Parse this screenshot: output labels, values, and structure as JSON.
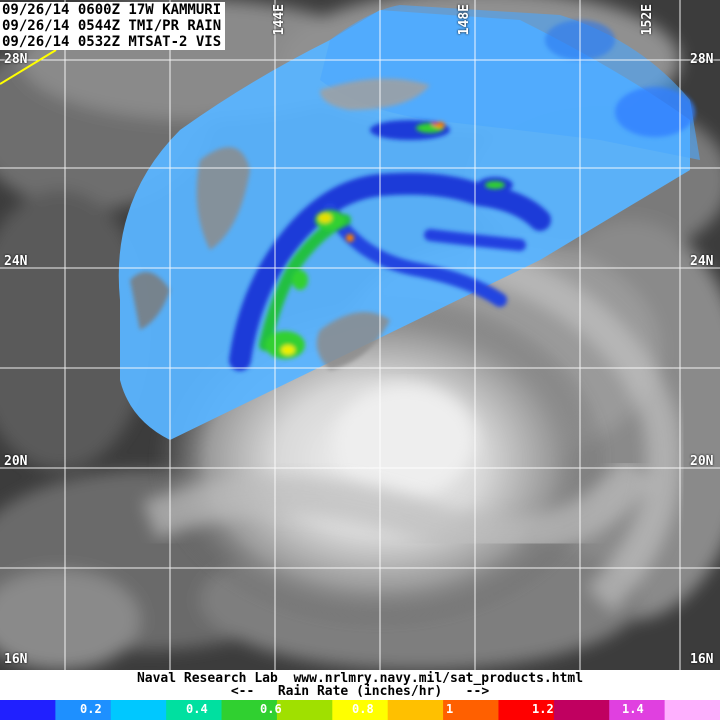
{
  "header": {
    "line1": "09/26/14 0600Z 17W KAMMURI",
    "line2": "09/26/14 0544Z TMI/PR RAIN",
    "line3": "09/26/14 0532Z MTSAT-2 VIS"
  },
  "grid": {
    "latitudes": [
      "28N",
      "24N",
      "20N",
      "16N"
    ],
    "longitudes": [
      "144E",
      "148E",
      "152E"
    ]
  },
  "footer": {
    "credit": "Naval Research Lab  www.nrlmry.navy.mil/sat_products.html",
    "legend_title": "<--   Rain Rate (inches/hr)   -->"
  },
  "colorbar": {
    "ticks": [
      "0.2",
      "0.4",
      "0.6",
      "0.8",
      "1",
      "1.2",
      "1.4"
    ],
    "colors": [
      "#2020ff",
      "#1e90ff",
      "#00c8ff",
      "#00e0a0",
      "#30d030",
      "#a0e000",
      "#ffff00",
      "#ffc000",
      "#ff6000",
      "#ff0000",
      "#c00060",
      "#e040e0",
      "#ffb0ff"
    ]
  }
}
